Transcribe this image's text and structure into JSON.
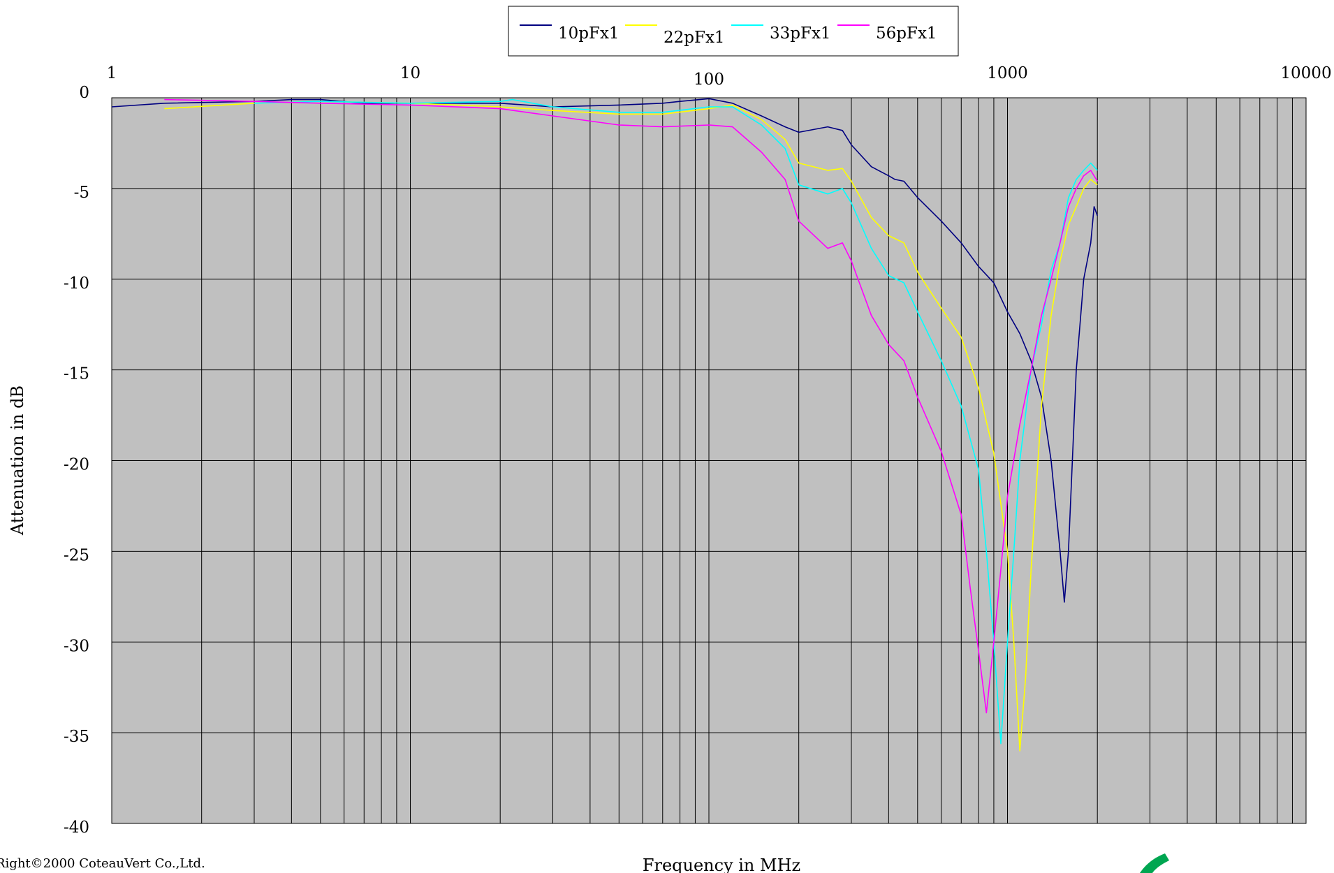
{
  "copyright": "Right©2000 CoteauVert Co.,Ltd.",
  "colors": {
    "plot_background": "#c0c0c0",
    "grid": "#000000",
    "logo": "#00a651"
  },
  "chart_data": {
    "type": "line",
    "title": "",
    "xlabel": "Frequency in MHz",
    "ylabel": "Attenuation in dB",
    "xscale": "log",
    "xlim": [
      1,
      10000
    ],
    "ylim": [
      -40,
      0
    ],
    "x_ticks": [
      1,
      10,
      100,
      1000,
      10000
    ],
    "x_tick_labels": [
      "1",
      "10",
      "100",
      "1000",
      "10000"
    ],
    "y_ticks": [
      0,
      -5,
      -10,
      -15,
      -20,
      -25,
      -30,
      -35,
      -40
    ],
    "y_tick_labels": [
      "0",
      "-5",
      "-10",
      "-15",
      "-20",
      "-25",
      "-30",
      "-35",
      "-40"
    ],
    "grid": true,
    "legend_position": "top-center",
    "series": [
      {
        "name": "10pFx1",
        "color": "#000080",
        "points": [
          [
            1,
            -0.5
          ],
          [
            1.5,
            -0.3
          ],
          [
            3,
            -0.2
          ],
          [
            4,
            -0.1
          ],
          [
            5,
            -0.1
          ],
          [
            7,
            -0.3
          ],
          [
            10,
            -0.3
          ],
          [
            20,
            -0.3
          ],
          [
            30,
            -0.5
          ],
          [
            50,
            -0.4
          ],
          [
            70,
            -0.3
          ],
          [
            80,
            -0.2
          ],
          [
            100,
            -0.05
          ],
          [
            120,
            -0.3
          ],
          [
            150,
            -1.0
          ],
          [
            180,
            -1.6
          ],
          [
            200,
            -1.9
          ],
          [
            250,
            -1.6
          ],
          [
            280,
            -1.8
          ],
          [
            300,
            -2.6
          ],
          [
            350,
            -3.8
          ],
          [
            400,
            -4.3
          ],
          [
            420,
            -4.5
          ],
          [
            450,
            -4.6
          ],
          [
            500,
            -5.5
          ],
          [
            600,
            -6.8
          ],
          [
            700,
            -8.0
          ],
          [
            800,
            -9.3
          ],
          [
            900,
            -10.2
          ],
          [
            1000,
            -11.8
          ],
          [
            1100,
            -13.0
          ],
          [
            1200,
            -14.5
          ],
          [
            1300,
            -16.5
          ],
          [
            1400,
            -20.0
          ],
          [
            1500,
            -25.0
          ],
          [
            1550,
            -27.8
          ],
          [
            1600,
            -25.0
          ],
          [
            1700,
            -15.0
          ],
          [
            1800,
            -10.0
          ],
          [
            1900,
            -8.0
          ],
          [
            1950,
            -6.0
          ],
          [
            2000,
            -6.5
          ]
        ]
      },
      {
        "name": "22pFx1",
        "color": "#ffff00",
        "points": [
          [
            1.5,
            -0.6
          ],
          [
            3,
            -0.3
          ],
          [
            5,
            -0.2
          ],
          [
            10,
            -0.3
          ],
          [
            20,
            -0.5
          ],
          [
            30,
            -0.7
          ],
          [
            50,
            -0.9
          ],
          [
            70,
            -0.9
          ],
          [
            100,
            -0.6
          ],
          [
            120,
            -0.4
          ],
          [
            150,
            -1.2
          ],
          [
            180,
            -2.3
          ],
          [
            200,
            -3.6
          ],
          [
            250,
            -4.0
          ],
          [
            280,
            -3.9
          ],
          [
            300,
            -4.6
          ],
          [
            350,
            -6.6
          ],
          [
            400,
            -7.6
          ],
          [
            450,
            -8.0
          ],
          [
            500,
            -9.6
          ],
          [
            600,
            -11.6
          ],
          [
            700,
            -13.2
          ],
          [
            800,
            -16.0
          ],
          [
            900,
            -19.6
          ],
          [
            1000,
            -25.0
          ],
          [
            1050,
            -30.0
          ],
          [
            1100,
            -36.0
          ],
          [
            1150,
            -32.0
          ],
          [
            1200,
            -26.0
          ],
          [
            1300,
            -17.0
          ],
          [
            1400,
            -12.0
          ],
          [
            1500,
            -9.0
          ],
          [
            1600,
            -7.0
          ],
          [
            1700,
            -6.0
          ],
          [
            1800,
            -5.0
          ],
          [
            1900,
            -4.5
          ],
          [
            2000,
            -4.8
          ]
        ]
      },
      {
        "name": "33pFx1",
        "color": "#00ffff",
        "points": [
          [
            3,
            -0.3
          ],
          [
            5,
            -0.2
          ],
          [
            10,
            -0.3
          ],
          [
            20,
            -0.2
          ],
          [
            22,
            -0.1
          ],
          [
            30,
            -0.5
          ],
          [
            50,
            -0.8
          ],
          [
            70,
            -0.8
          ],
          [
            100,
            -0.5
          ],
          [
            120,
            -0.5
          ],
          [
            150,
            -1.5
          ],
          [
            180,
            -2.8
          ],
          [
            200,
            -4.8
          ],
          [
            250,
            -5.3
          ],
          [
            280,
            -5.0
          ],
          [
            300,
            -5.8
          ],
          [
            350,
            -8.3
          ],
          [
            400,
            -9.8
          ],
          [
            450,
            -10.2
          ],
          [
            500,
            -11.8
          ],
          [
            600,
            -14.5
          ],
          [
            700,
            -17.0
          ],
          [
            800,
            -20.5
          ],
          [
            850,
            -25.0
          ],
          [
            900,
            -30.0
          ],
          [
            950,
            -35.6
          ],
          [
            1000,
            -30.0
          ],
          [
            1050,
            -25.0
          ],
          [
            1100,
            -20.0
          ],
          [
            1200,
            -15.0
          ],
          [
            1300,
            -12.5
          ],
          [
            1400,
            -9.5
          ],
          [
            1500,
            -8.0
          ],
          [
            1600,
            -5.5
          ],
          [
            1700,
            -4.5
          ],
          [
            1800,
            -4.0
          ],
          [
            1900,
            -3.6
          ],
          [
            2000,
            -4.0
          ]
        ]
      },
      {
        "name": "56pFx1",
        "color": "#ff00ff",
        "points": [
          [
            1.5,
            -0.1
          ],
          [
            3,
            -0.2
          ],
          [
            5,
            -0.3
          ],
          [
            10,
            -0.4
          ],
          [
            20,
            -0.6
          ],
          [
            30,
            -1.0
          ],
          [
            50,
            -1.5
          ],
          [
            70,
            -1.6
          ],
          [
            100,
            -1.5
          ],
          [
            120,
            -1.6
          ],
          [
            150,
            -3.0
          ],
          [
            180,
            -4.5
          ],
          [
            200,
            -6.8
          ],
          [
            250,
            -8.3
          ],
          [
            280,
            -8.0
          ],
          [
            300,
            -9.0
          ],
          [
            350,
            -12.0
          ],
          [
            400,
            -13.6
          ],
          [
            450,
            -14.5
          ],
          [
            500,
            -16.5
          ],
          [
            600,
            -19.5
          ],
          [
            700,
            -23.0
          ],
          [
            750,
            -27.0
          ],
          [
            800,
            -30.5
          ],
          [
            850,
            -33.9
          ],
          [
            900,
            -30.0
          ],
          [
            950,
            -26.0
          ],
          [
            1000,
            -22.0
          ],
          [
            1100,
            -18.0
          ],
          [
            1200,
            -15.0
          ],
          [
            1300,
            -12.0
          ],
          [
            1400,
            -10.0
          ],
          [
            1500,
            -8.0
          ],
          [
            1600,
            -6.0
          ],
          [
            1700,
            -5.0
          ],
          [
            1800,
            -4.3
          ],
          [
            1900,
            -4.0
          ],
          [
            2000,
            -4.6
          ]
        ]
      }
    ]
  }
}
